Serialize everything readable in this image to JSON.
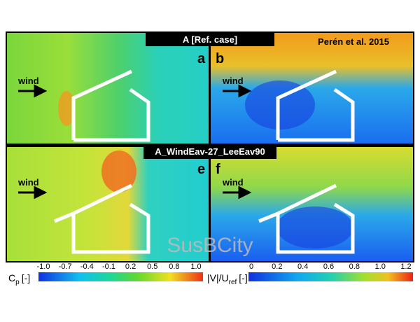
{
  "panels": {
    "top_banner": "A [Ref. case]",
    "bottom_banner": "A_WindEav-27_LeeEav90",
    "labels": [
      "a",
      "b",
      "e",
      "f"
    ],
    "wind_labels": [
      "wind",
      "wind",
      "wind",
      "wind"
    ],
    "citation": "Perén et al. 2015",
    "watermark": "SusBCity"
  },
  "colorbars": [
    {
      "symbol": "C",
      "subscript": "p",
      "unit": "[-]",
      "ticks": [
        "-1.0",
        "-0.7",
        "-0.4",
        "-0.1",
        "0.2",
        "0.5",
        "0.8",
        "1.0"
      ]
    },
    {
      "symbol": "|V|/U",
      "subscript": "ref",
      "unit": "[-]",
      "ticks": [
        "0",
        "0.2",
        "0.4",
        "0.6",
        "0.8",
        "1.0",
        "1.2"
      ]
    }
  ]
}
